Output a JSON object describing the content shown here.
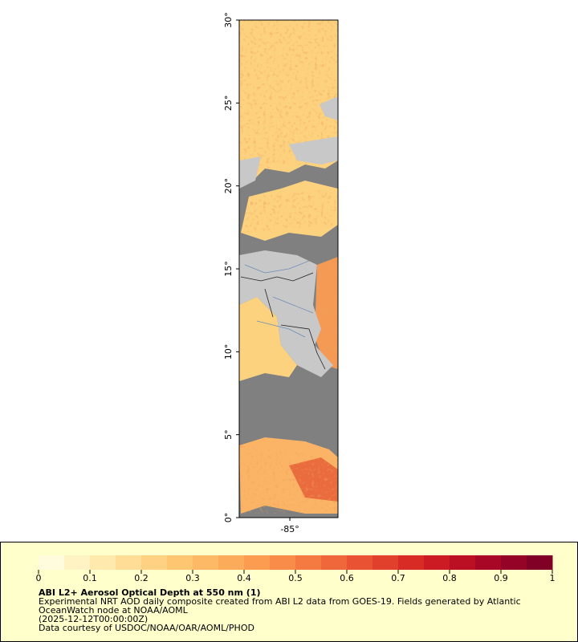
{
  "map": {
    "latlim": [
      0,
      30
    ],
    "lonlim": [
      -88.05,
      -82.1
    ],
    "lat_ticks": [
      {
        "value": 0,
        "label": "0°"
      },
      {
        "value": 5,
        "label": "5°"
      },
      {
        "value": 10,
        "label": "10°"
      },
      {
        "value": 15,
        "label": "15°"
      },
      {
        "value": 20,
        "label": "20°"
      },
      {
        "value": 25,
        "label": "25°"
      },
      {
        "value": 30,
        "label": "30°"
      }
    ],
    "lon_ticks": [
      {
        "value": -85,
        "label": "-85°"
      }
    ]
  },
  "colorbar": {
    "range": [
      0,
      1
    ],
    "ticks": [
      0,
      0.1,
      0.2,
      0.3,
      0.4,
      0.5,
      0.6,
      0.7,
      0.8,
      0.9,
      1
    ],
    "colors": [
      "#fffbdc",
      "#fff3c4",
      "#ffe9ad",
      "#ffdd96",
      "#fed282",
      "#fec671",
      "#fdb965",
      "#fcab5a",
      "#fb9c51",
      "#f88c48",
      "#f47a41",
      "#ef673a",
      "#e95333",
      "#e1402c",
      "#d82b26",
      "#cc1b22",
      "#bb1024",
      "#a80826",
      "#950426",
      "#800026"
    ]
  },
  "legend": {
    "title": "ABI L2+ Aerosol Optical Depth at 550 nm (1)",
    "lines": [
      "Experimental NRT AOD daily composite created from ABI L2 data from GOES-19. Fields generated by Atlantic",
      "OceanWatch node at NOAA/AOML",
      "(2025-12-12T00:00:00Z)",
      "Data courtesy of USDOC/NOAA/OAR/AOML/PHOD"
    ]
  }
}
